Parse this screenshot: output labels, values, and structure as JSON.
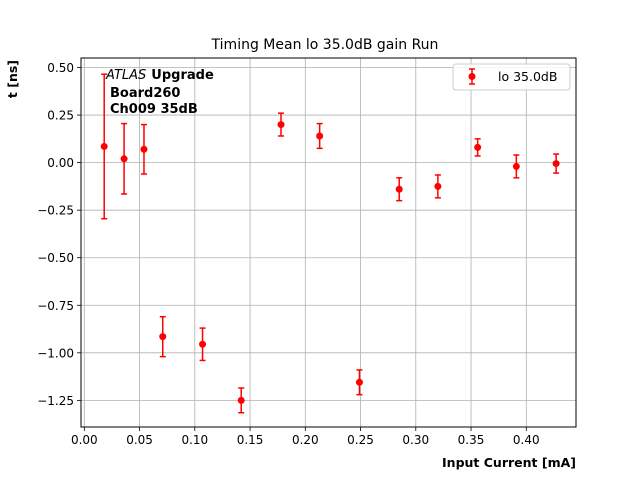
{
  "chart_data": {
    "type": "scatter",
    "title": "Timing Mean lo 35.0dB gain Run",
    "xlabel": "Input Current [mA]",
    "ylabel": "t [ns]",
    "xlim": [
      -0.003,
      0.445
    ],
    "ylim": [
      -1.39,
      0.55
    ],
    "x_ticks": [
      "0.00",
      "0.05",
      "0.10",
      "0.15",
      "0.20",
      "0.25",
      "0.30",
      "0.35",
      "0.40"
    ],
    "x_tick_values": [
      0.0,
      0.05,
      0.1,
      0.15,
      0.2,
      0.25,
      0.3,
      0.35,
      0.4
    ],
    "y_ticks": [
      "0.50",
      "0.25",
      "0.00",
      "−0.25",
      "−0.50",
      "−0.75",
      "−1.00",
      "−1.25"
    ],
    "y_tick_values": [
      0.5,
      0.25,
      0.0,
      -0.25,
      -0.5,
      -0.75,
      -1.0,
      -1.25
    ],
    "grid": true,
    "legend_position": "top-right",
    "annotation": {
      "italic": "ATLAS",
      "bold": "Upgrade",
      "line2": "Board260",
      "line3": "Ch009 35dB"
    },
    "series": [
      {
        "name": "lo 35.0dB",
        "color": "#ff0000",
        "x": [
          0.018,
          0.036,
          0.054,
          0.071,
          0.107,
          0.142,
          0.178,
          0.213,
          0.249,
          0.285,
          0.32,
          0.356,
          0.391,
          0.427
        ],
        "y": [
          0.085,
          0.02,
          0.07,
          -0.915,
          -0.955,
          -1.25,
          0.2,
          0.14,
          -1.155,
          -0.14,
          -0.125,
          0.08,
          -0.02,
          -0.005
        ],
        "yerr": [
          0.38,
          0.185,
          0.13,
          0.105,
          0.085,
          0.065,
          0.06,
          0.065,
          0.065,
          0.06,
          0.06,
          0.045,
          0.06,
          0.05
        ]
      }
    ]
  }
}
